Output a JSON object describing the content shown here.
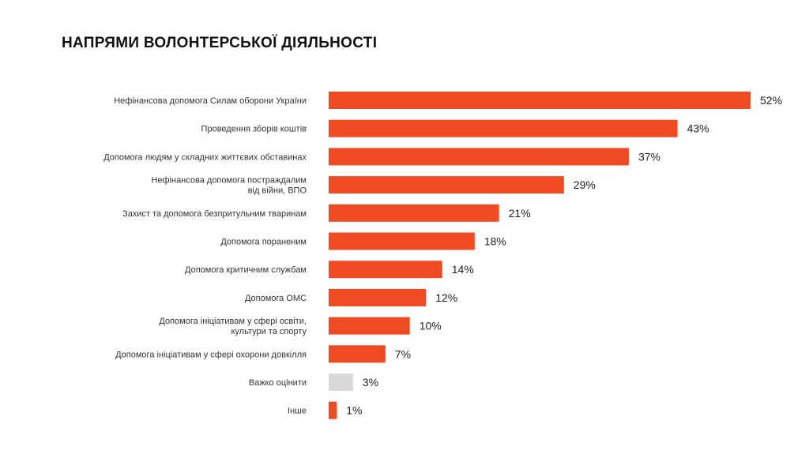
{
  "chart_data": {
    "type": "bar",
    "orientation": "horizontal",
    "title": "НАПРЯМИ ВОЛОНТЕРСЬКОЇ ДІЯЛЬНОСТІ",
    "unit": "%",
    "xlim": [
      0,
      52
    ],
    "grid": false,
    "categories": [
      "Нефінансова допомога Силам оборони України",
      "Проведення зборів коштів",
      "Допомога людям у складних життєвих обставинах",
      "Нефінансова допомога постраждалим від війни, ВПО",
      "Захист та допомога безпритульним тваринам",
      "Допомога пораненим",
      "Допомога критичним службам",
      "Допомога ОМС",
      "Допомога ініціативам у сфері освіти, культури та спорту",
      "Допомога ініціативам у сфері охорони довкілля",
      "Важко оцінити",
      "Інше"
    ],
    "values": [
      52,
      43,
      37,
      29,
      21,
      18,
      14,
      12,
      10,
      7,
      3,
      1
    ],
    "value_labels": [
      "52%",
      "43%",
      "37%",
      "29%",
      "21%",
      "18%",
      "14%",
      "12%",
      "10%",
      "7%",
      "3%",
      "1%"
    ],
    "colors": {
      "bar": "#f04a22",
      "neutral_bar": "#d9d9d9"
    },
    "neutral_category_index": 10
  }
}
